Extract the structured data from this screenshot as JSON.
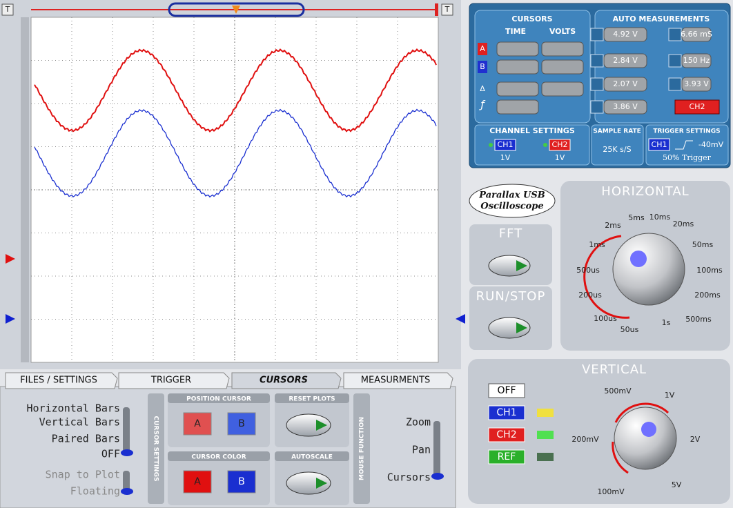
{
  "scope": {
    "trigger_left": "T",
    "trigger_right": "T"
  },
  "cursors": {
    "title": "CURSORS",
    "time": "TIME",
    "volts": "VOLTS",
    "a": "A",
    "b": "B",
    "delta": "Δ",
    "f": "ƒ"
  },
  "auto_measurements": {
    "title": "AUTO MEASUREMENTS",
    "values": [
      "4.92 V",
      "6.66 mS",
      "2.84 V",
      "150 Hz",
      "2.07 V",
      "3.93 V",
      "3.86 V"
    ],
    "channel": "CH2"
  },
  "channel_settings": {
    "title": "CHANNEL SETTINGS",
    "ch1": "CH1",
    "ch1_scale": "1V",
    "ch2": "CH2",
    "ch2_scale": "1V"
  },
  "sample_rate": {
    "title": "SAMPLE RATE",
    "value": "25K s/S"
  },
  "trigger_settings": {
    "title": "TRIGGER SETTINGS",
    "channel": "CH1",
    "level": "-40mV",
    "mode": "50% Trigger"
  },
  "logo": {
    "line1": "Parallax USB",
    "line2": "Oscilloscope"
  },
  "horizontal": {
    "title": "HORIZONTAL",
    "labels": [
      "5ms",
      "10ms",
      "20ms",
      "2ms",
      "50ms",
      "1ms",
      "100ms",
      "500us",
      "200ms",
      "200us",
      "500ms",
      "100us",
      "1s",
      "50us"
    ]
  },
  "fft": {
    "title": "FFT"
  },
  "run_stop": {
    "title": "RUN/STOP"
  },
  "vertical": {
    "title": "VERTICAL",
    "off": "OFF",
    "ch1": "CH1",
    "ch2": "CH2",
    "ref": "REF",
    "labels": [
      "500mV",
      "1V",
      "200mV",
      "2V",
      "100mV",
      "5V"
    ]
  },
  "tabs": [
    "FILES / SETTINGS",
    "TRIGGER",
    "CURSORS",
    "MEASURMENTS"
  ],
  "cursor_settings": {
    "title": "CURSOR SETTINGS",
    "options": [
      "Horizontal Bars",
      "Vertical Bars",
      "Paired Bars",
      "OFF"
    ],
    "snap": [
      "Snap to Plot",
      "Floating"
    ]
  },
  "position_cursor": {
    "title": "POSITION CURSOR",
    "a": "A",
    "b": "B"
  },
  "reset_plots": {
    "title": "RESET PLOTS"
  },
  "cursor_color": {
    "title": "CURSOR COLOR",
    "a": "A",
    "b": "B"
  },
  "autoscale": {
    "title": "AUTOSCALE"
  },
  "mouse_function": {
    "title": "MOUSE FUNCTION",
    "options": [
      "Zoom",
      "Pan",
      "Cursors"
    ]
  }
}
